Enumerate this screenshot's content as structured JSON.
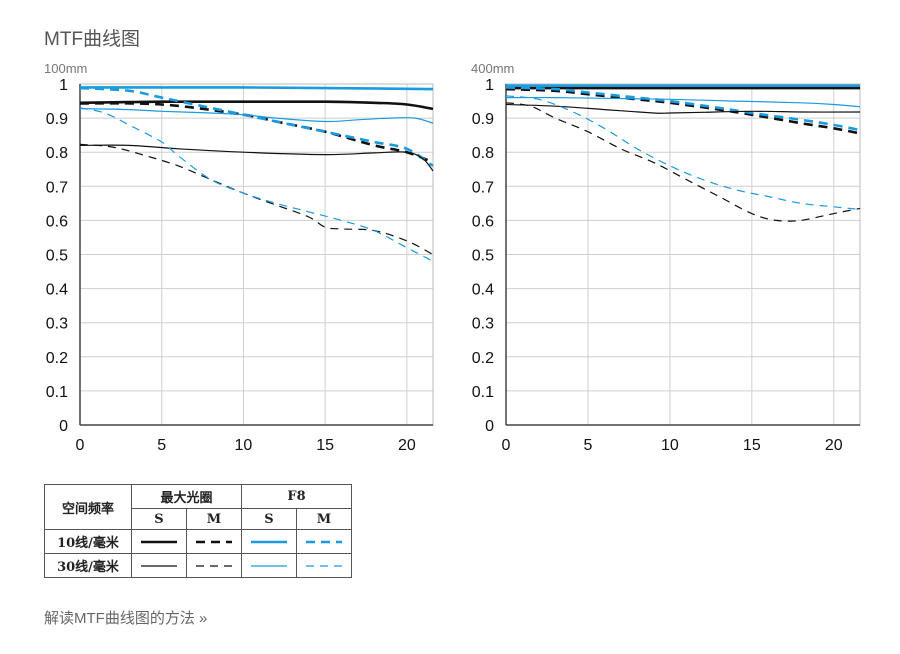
{
  "page": {
    "title": "MTF曲线图",
    "guide_link": "解读MTF曲线图的方法 »"
  },
  "colors": {
    "black": "#111111",
    "blue": "#1a9be0",
    "grid": "#cfcfcf",
    "axis": "#444444"
  },
  "chart_data": [
    {
      "type": "line",
      "title": "100mm",
      "xlim": [
        0,
        21.6
      ],
      "ylim": [
        0,
        1
      ],
      "xticks": [
        "0",
        "5",
        "10",
        "15",
        "20"
      ],
      "yticks": [
        "0",
        "0.1",
        "0.2",
        "0.3",
        "0.4",
        "0.5",
        "0.6",
        "0.7",
        "0.8",
        "0.9",
        "1"
      ],
      "grid": true,
      "series": [
        {
          "name": "10线/毫米 最大光圈 S",
          "color": "#111111",
          "dash": "solid",
          "width": "thick",
          "points": [
            [
              0,
              0.945
            ],
            [
              5,
              0.948
            ],
            [
              10,
              0.948
            ],
            [
              15,
              0.948
            ],
            [
              18,
              0.945
            ],
            [
              20,
              0.94
            ],
            [
              21.6,
              0.927
            ]
          ]
        },
        {
          "name": "10线/毫米 最大光圈 M",
          "color": "#111111",
          "dash": "dashed",
          "width": "thick",
          "points": [
            [
              0,
              0.943
            ],
            [
              5,
              0.94
            ],
            [
              10,
              0.91
            ],
            [
              12,
              0.89
            ],
            [
              15,
              0.86
            ],
            [
              18,
              0.82
            ],
            [
              20,
              0.8
            ],
            [
              21.6,
              0.77
            ]
          ]
        },
        {
          "name": "10线/毫米 F8 S",
          "color": "#1a9be0",
          "dash": "solid",
          "width": "thick",
          "points": [
            [
              0,
              0.99
            ],
            [
              5,
              0.99
            ],
            [
              10,
              0.99
            ],
            [
              15,
              0.988
            ],
            [
              20,
              0.986
            ],
            [
              21.6,
              0.985
            ]
          ]
        },
        {
          "name": "10线/毫米 F8 M",
          "color": "#1a9be0",
          "dash": "dashed",
          "width": "thick",
          "points": [
            [
              0,
              0.988
            ],
            [
              3,
              0.98
            ],
            [
              5,
              0.96
            ],
            [
              7,
              0.94
            ],
            [
              10,
              0.91
            ],
            [
              12,
              0.89
            ],
            [
              15,
              0.86
            ],
            [
              18,
              0.83
            ],
            [
              20,
              0.81
            ],
            [
              21.6,
              0.76
            ]
          ]
        },
        {
          "name": "30线/毫米 最大光圈 S",
          "color": "#111111",
          "dash": "solid",
          "width": "thin",
          "points": [
            [
              0,
              0.82
            ],
            [
              3,
              0.82
            ],
            [
              6,
              0.81
            ],
            [
              10,
              0.8
            ],
            [
              15,
              0.793
            ],
            [
              18,
              0.798
            ],
            [
              20,
              0.8
            ],
            [
              21,
              0.78
            ],
            [
              21.6,
              0.745
            ]
          ]
        },
        {
          "name": "30线/毫米 最大光圈 M",
          "color": "#111111",
          "dash": "dashed",
          "width": "thin",
          "points": [
            [
              0,
              0.823
            ],
            [
              2,
              0.815
            ],
            [
              4,
              0.79
            ],
            [
              6,
              0.76
            ],
            [
              8,
              0.72
            ],
            [
              10,
              0.68
            ],
            [
              12,
              0.645
            ],
            [
              14,
              0.61
            ],
            [
              15,
              0.58
            ],
            [
              16,
              0.575
            ],
            [
              18,
              0.57
            ],
            [
              20,
              0.54
            ],
            [
              21.6,
              0.5
            ]
          ]
        },
        {
          "name": "30线/毫米 F8 S",
          "color": "#1a9be0",
          "dash": "solid",
          "width": "thin",
          "points": [
            [
              0,
              0.928
            ],
            [
              3,
              0.925
            ],
            [
              5,
              0.92
            ],
            [
              8,
              0.915
            ],
            [
              10,
              0.91
            ],
            [
              12,
              0.9
            ],
            [
              15,
              0.89
            ],
            [
              17,
              0.895
            ],
            [
              19,
              0.9
            ],
            [
              20.5,
              0.9
            ],
            [
              21.6,
              0.885
            ]
          ]
        },
        {
          "name": "30线/毫米 F8 M",
          "color": "#1a9be0",
          "dash": "dashed",
          "width": "thin",
          "points": [
            [
              0,
              0.93
            ],
            [
              1.5,
              0.915
            ],
            [
              3,
              0.88
            ],
            [
              5,
              0.83
            ],
            [
              6,
              0.79
            ],
            [
              8,
              0.72
            ],
            [
              10,
              0.68
            ],
            [
              12,
              0.65
            ],
            [
              14,
              0.625
            ],
            [
              16,
              0.6
            ],
            [
              18,
              0.57
            ],
            [
              20,
              0.52
            ],
            [
              21.6,
              0.48
            ]
          ]
        }
      ]
    },
    {
      "type": "line",
      "title": "400mm",
      "xlim": [
        0,
        21.6
      ],
      "ylim": [
        0,
        1
      ],
      "xticks": [
        "0",
        "5",
        "10",
        "15",
        "20"
      ],
      "yticks": [
        "0",
        "0.1",
        "0.2",
        "0.3",
        "0.4",
        "0.5",
        "0.6",
        "0.7",
        "0.8",
        "0.9",
        "1"
      ],
      "grid": true,
      "series": [
        {
          "name": "10线/毫米 最大光圈 S",
          "color": "#111111",
          "dash": "solid",
          "width": "thick",
          "points": [
            [
              0,
              0.988
            ],
            [
              5,
              0.988
            ],
            [
              10,
              0.988
            ],
            [
              15,
              0.988
            ],
            [
              20,
              0.988
            ],
            [
              21.6,
              0.988
            ]
          ]
        },
        {
          "name": "10线/毫米 最大光圈 M",
          "color": "#111111",
          "dash": "dashed",
          "width": "thick",
          "points": [
            [
              0,
              0.985
            ],
            [
              3,
              0.98
            ],
            [
              5,
              0.97
            ],
            [
              8,
              0.955
            ],
            [
              10,
              0.945
            ],
            [
              13,
              0.925
            ],
            [
              15,
              0.91
            ],
            [
              18,
              0.885
            ],
            [
              20,
              0.87
            ],
            [
              21.6,
              0.855
            ]
          ]
        },
        {
          "name": "10线/毫米 F8 S",
          "color": "#1a9be0",
          "dash": "solid",
          "width": "thick",
          "points": [
            [
              0,
              0.995
            ],
            [
              5,
              0.995
            ],
            [
              10,
              0.995
            ],
            [
              15,
              0.995
            ],
            [
              20,
              0.995
            ],
            [
              21.6,
              0.995
            ]
          ]
        },
        {
          "name": "10线/毫米 F8 M",
          "color": "#1a9be0",
          "dash": "dashed",
          "width": "thick",
          "points": [
            [
              0,
              0.99
            ],
            [
              3,
              0.985
            ],
            [
              5,
              0.975
            ],
            [
              8,
              0.96
            ],
            [
              10,
              0.95
            ],
            [
              13,
              0.93
            ],
            [
              15,
              0.915
            ],
            [
              18,
              0.895
            ],
            [
              20,
              0.88
            ],
            [
              21.6,
              0.865
            ]
          ]
        },
        {
          "name": "30线/毫米 最大光圈 S",
          "color": "#111111",
          "dash": "solid",
          "width": "thin",
          "points": [
            [
              0,
              0.94
            ],
            [
              3,
              0.935
            ],
            [
              6,
              0.925
            ],
            [
              9,
              0.915
            ],
            [
              10,
              0.915
            ],
            [
              12,
              0.917
            ],
            [
              15,
              0.92
            ],
            [
              18,
              0.918
            ],
            [
              21.6,
              0.918
            ]
          ]
        },
        {
          "name": "30线/毫米 最大光圈 M",
          "color": "#111111",
          "dash": "dashed",
          "width": "thin",
          "points": [
            [
              0,
              0.945
            ],
            [
              1.5,
              0.935
            ],
            [
              3,
              0.9
            ],
            [
              5,
              0.86
            ],
            [
              7,
              0.81
            ],
            [
              9,
              0.77
            ],
            [
              11,
              0.72
            ],
            [
              13,
              0.67
            ],
            [
              15,
              0.62
            ],
            [
              16.5,
              0.6
            ],
            [
              18,
              0.6
            ],
            [
              19.5,
              0.615
            ],
            [
              20.5,
              0.625
            ],
            [
              21.6,
              0.635
            ]
          ]
        },
        {
          "name": "30线/毫米 F8 S",
          "color": "#1a9be0",
          "dash": "solid",
          "width": "thin",
          "points": [
            [
              0,
              0.96
            ],
            [
              3,
              0.96
            ],
            [
              6,
              0.958
            ],
            [
              10,
              0.955
            ],
            [
              14,
              0.95
            ],
            [
              18,
              0.945
            ],
            [
              20,
              0.94
            ],
            [
              21.6,
              0.933
            ]
          ]
        },
        {
          "name": "30线/毫米 F8 M",
          "color": "#1a9be0",
          "dash": "dashed",
          "width": "thin",
          "points": [
            [
              0,
              0.965
            ],
            [
              2,
              0.955
            ],
            [
              4,
              0.92
            ],
            [
              6,
              0.87
            ],
            [
              8,
              0.81
            ],
            [
              10,
              0.76
            ],
            [
              12,
              0.72
            ],
            [
              14,
              0.69
            ],
            [
              16,
              0.67
            ],
            [
              18,
              0.65
            ],
            [
              20,
              0.64
            ],
            [
              21.6,
              0.632
            ]
          ]
        }
      ]
    }
  ],
  "legend": {
    "header_freq": "空间频率",
    "header_max": "最大光圈",
    "header_f8": "F8",
    "sub_s1": "S",
    "sub_m1": "M",
    "sub_s2": "S",
    "sub_m2": "M",
    "row1_label": "10线/毫米",
    "row2_label": "30线/毫米"
  }
}
